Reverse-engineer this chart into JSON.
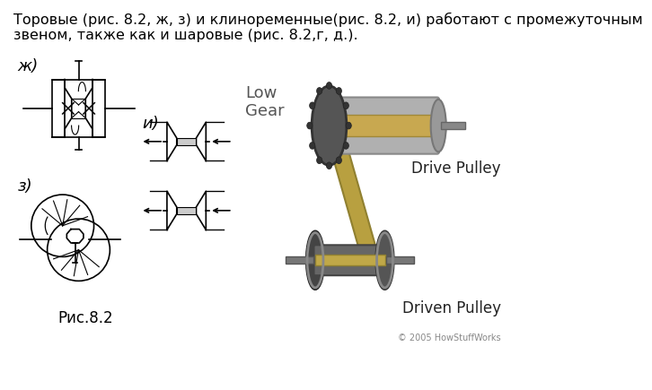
{
  "title_text": "Торовые (рис. 8.2, ж, з) и клиноременные(рис. 8.2, и) работают с промежуточным\nзвеном, также как и шаровые (рис. 8.2,г, д.).",
  "caption_text": "Рис.8.2",
  "label_zh": "ж)",
  "label_z": "з)",
  "label_i": "и)",
  "label_low_gear": "Low\nGear",
  "label_drive_pulley": "Drive Pulley",
  "label_driven_pulley": "Driven Pulley",
  "label_copyright": "© 2005 HowStuffWorks",
  "bg_color": "#ffffff",
  "title_fontsize": 11.5,
  "caption_fontsize": 12,
  "label_fontsize": 12,
  "low_gear_color": "#555555",
  "drive_label_color": "#222222",
  "driven_label_color": "#222222",
  "copyright_color": "#888888"
}
